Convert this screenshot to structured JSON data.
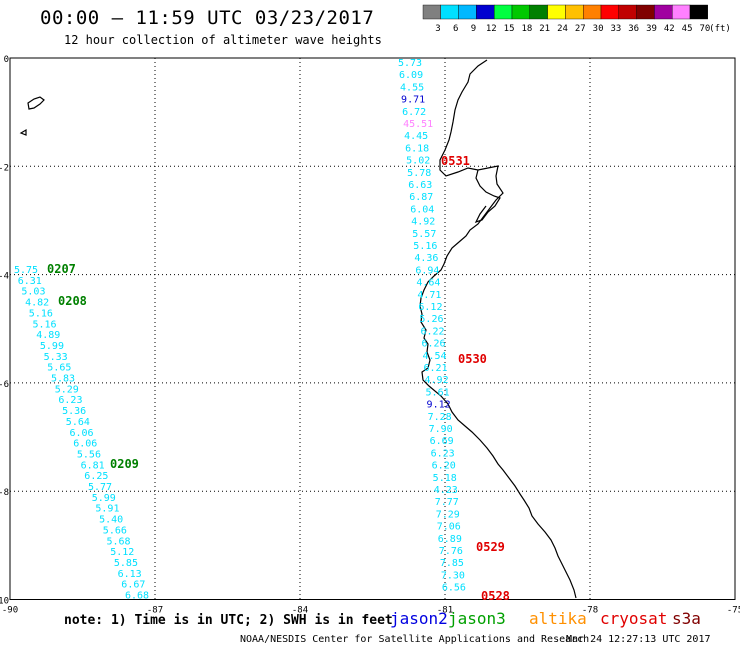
{
  "header": {
    "title": "00:00 – 11:59 UTC 03/23/2017",
    "subtitle": "12 hour collection of altimeter wave heights"
  },
  "colorbar": {
    "labels": [
      "3",
      "6",
      "9",
      "12",
      "15",
      "18",
      "21",
      "24",
      "27",
      "30",
      "33",
      "36",
      "39",
      "42",
      "45",
      "70"
    ],
    "unit": "(ft)",
    "colors": [
      "#808080",
      "#00e0ff",
      "#00b8ff",
      "#0000d0",
      "#00ff40",
      "#00c800",
      "#008000",
      "#ffff00",
      "#ffc000",
      "#ff8000",
      "#ff0000",
      "#c00000",
      "#800000",
      "#a000a0",
      "#ff80ff",
      "#000000"
    ]
  },
  "axes": {
    "x_ticks": [
      "-90",
      "-87",
      "-84",
      "-81",
      "-78",
      "-75"
    ],
    "y_ticks": [
      "0",
      "-2",
      "-4",
      "-6",
      "-8",
      "-10"
    ]
  },
  "tracks": [
    {
      "name": "track-west",
      "values": [
        "5.75",
        "6.31",
        "5.03",
        "4.82",
        "5.16",
        "5.16",
        "4.89",
        "5.99",
        "5.33",
        "5.65",
        "5.83",
        "5.29",
        "6.23",
        "5.36",
        "5.64",
        "6.06",
        "6.06",
        "5.56",
        "6.81",
        "6.25",
        "5.77",
        "5.99",
        "5.91",
        "5.40",
        "5.66",
        "5.68",
        "5.12",
        "5.85",
        "6.13",
        "6.67",
        "6.68"
      ],
      "colors": []
    },
    {
      "name": "track-east",
      "values": [
        "5.73",
        "6.09",
        "4.55",
        "9.71",
        "6.72",
        "45.51",
        "4.45",
        "6.18",
        "5.02",
        "5.78",
        "6.63",
        "6.87",
        "6.04",
        "4.92",
        "5.57",
        "5.16",
        "4.36",
        "6.94",
        "4.64",
        "4.71",
        "6.12",
        "5.26",
        "6.22",
        "6.26",
        "4.54",
        "6.21",
        "4.92",
        "5.61",
        "9.12",
        "7.28",
        "7.90",
        "6.69",
        "6.23",
        "6.20",
        "5.18",
        "4.23",
        "7.77",
        "7.29",
        "7.06",
        "6.89",
        "7.76",
        "7.85",
        "7.30",
        "6.56"
      ],
      "colors": []
    }
  ],
  "times": [
    {
      "label": "0207",
      "color": "#008000"
    },
    {
      "label": "0208",
      "color": "#008000"
    },
    {
      "label": "0209",
      "color": "#008000"
    },
    {
      "label": "0531",
      "color": "#e00000"
    },
    {
      "label": "0530",
      "color": "#e00000"
    },
    {
      "label": "0529",
      "color": "#e00000"
    },
    {
      "label": "0528",
      "color": "#e00000"
    }
  ],
  "footer": {
    "note": "note: 1) Time is in UTC; 2) SWH is in feet",
    "credit": "NOAA/NESDIS Center for Satellite Applications and Research",
    "timestamp": "Mar 24 12:27:13 UTC 2017"
  },
  "satellites": [
    {
      "name": "jason2",
      "color": "#0000e0"
    },
    {
      "name": "jason3",
      "color": "#00a000"
    },
    {
      "name": "altika",
      "color": "#ff9000"
    },
    {
      "name": "cryosat",
      "color": "#e00000"
    },
    {
      "name": "s3a",
      "color": "#800000"
    }
  ]
}
